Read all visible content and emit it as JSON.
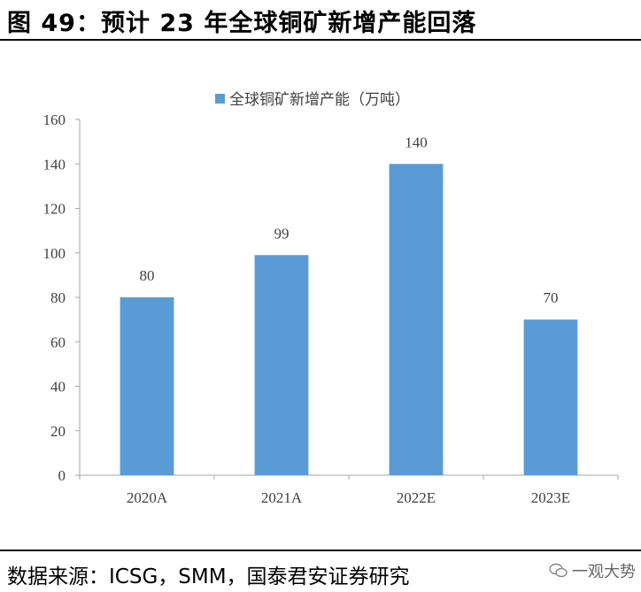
{
  "figure": {
    "title": "图 49：预计 23 年全球铜矿新增产能回落",
    "source": "数据来源：ICSG，SMM，国泰君安证券研究",
    "watermark": "一观大势"
  },
  "chart_data": {
    "type": "bar",
    "categories": [
      "2020A",
      "2021A",
      "2022E",
      "2023E"
    ],
    "series": [
      {
        "name": "全球铜矿新增产能（万吨）",
        "values": [
          80,
          99,
          140,
          70
        ],
        "color": "#5B9BD5"
      }
    ],
    "ylim": [
      0,
      160
    ],
    "yticks": [
      0,
      20,
      40,
      60,
      80,
      100,
      120,
      140,
      160
    ],
    "legend_position": "top-center",
    "grid": false,
    "data_labels": true
  }
}
